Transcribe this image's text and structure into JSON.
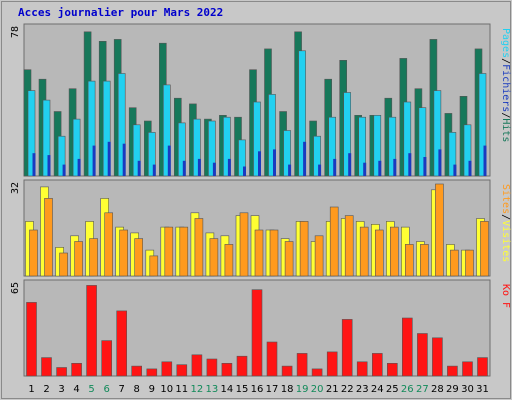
{
  "title": "Acces journalier pour Mars 2022",
  "colors": {
    "background": "#c8c8c8",
    "plot_bg": "#b8b8b8",
    "hits": "#16785a",
    "files": "#22d0f0",
    "pages": "#1a3bbf",
    "visits": "#ffff33",
    "sites": "#ff9a1e",
    "kb": "#ff1414",
    "weekend_day": "#128a5a",
    "weekday": "#000000"
  },
  "chart_data": [
    {
      "type": "bar",
      "name": "hits-files-pages",
      "ylim": [
        0,
        78
      ],
      "ymax_label": "78",
      "right_labels": [
        "Pages",
        "/",
        "Fichiers",
        "/",
        "Hits"
      ],
      "series": [
        {
          "name": "Hits",
          "color": "#16785a",
          "values": [
            56,
            51,
            34,
            46,
            76,
            71,
            72,
            36,
            29,
            70,
            41,
            38,
            30,
            32,
            31,
            56,
            67,
            34,
            76,
            29,
            51,
            61,
            32,
            32,
            41,
            62,
            46,
            72,
            33,
            42,
            67
          ]
        },
        {
          "name": "Fichiers",
          "color": "#22d0f0",
          "values": [
            45,
            40,
            21,
            30,
            50,
            50,
            54,
            27,
            23,
            48,
            28,
            30,
            29,
            31,
            19,
            39,
            43,
            24,
            66,
            21,
            31,
            44,
            31,
            32,
            31,
            39,
            36,
            45,
            23,
            27,
            54
          ]
        },
        {
          "name": "Pages",
          "color": "#1a3bbf",
          "values": [
            12,
            11,
            6,
            9,
            16,
            18,
            17,
            8,
            6,
            16,
            8,
            9,
            7,
            9,
            5,
            13,
            14,
            6,
            18,
            6,
            9,
            12,
            7,
            8,
            9,
            12,
            10,
            14,
            6,
            8,
            16
          ]
        }
      ]
    },
    {
      "type": "bar",
      "name": "visits-sites",
      "ylim": [
        0,
        32
      ],
      "ymax_label": "32",
      "right_labels": [
        "Sites",
        "/",
        "Visites"
      ],
      "series": [
        {
          "name": "Visites",
          "color": "#ffff33",
          "values": [
            19,
            31,
            10,
            14,
            19,
            27,
            17,
            15,
            9,
            17,
            17,
            22,
            15,
            14,
            21,
            21,
            16,
            13,
            19,
            12,
            19,
            20,
            19,
            18,
            19,
            17,
            12,
            30,
            11,
            9,
            20
          ]
        },
        {
          "name": "Sites",
          "color": "#ff9a1e",
          "values": [
            16,
            27,
            8,
            12,
            13,
            22,
            16,
            13,
            7,
            17,
            17,
            20,
            13,
            11,
            22,
            16,
            16,
            12,
            19,
            14,
            24,
            21,
            17,
            16,
            17,
            11,
            11,
            32,
            9,
            9,
            19
          ]
        }
      ]
    },
    {
      "type": "bar",
      "name": "kb",
      "ylim": [
        0,
        65
      ],
      "ymax_label": "65",
      "right_labels": [
        "Ko F"
      ],
      "series": [
        {
          "name": "Ko F",
          "color": "#ff1414",
          "values": [
            52,
            13,
            6,
            9,
            64,
            25,
            46,
            7,
            5,
            10,
            8,
            15,
            12,
            9,
            14,
            61,
            24,
            7,
            16,
            5,
            17,
            40,
            10,
            16,
            9,
            41,
            30,
            27,
            7,
            10,
            13
          ]
        }
      ]
    }
  ],
  "x_labels": [
    "1",
    "2",
    "3",
    "4",
    "5",
    "6",
    "7",
    "8",
    "9",
    "10",
    "11",
    "12",
    "13",
    "14",
    "15",
    "16",
    "17",
    "18",
    "19",
    "20",
    "21",
    "22",
    "23",
    "24",
    "25",
    "26",
    "27",
    "28",
    "29",
    "30",
    "31"
  ],
  "weekend_days": [
    5,
    6,
    12,
    13,
    19,
    20,
    26,
    27
  ]
}
